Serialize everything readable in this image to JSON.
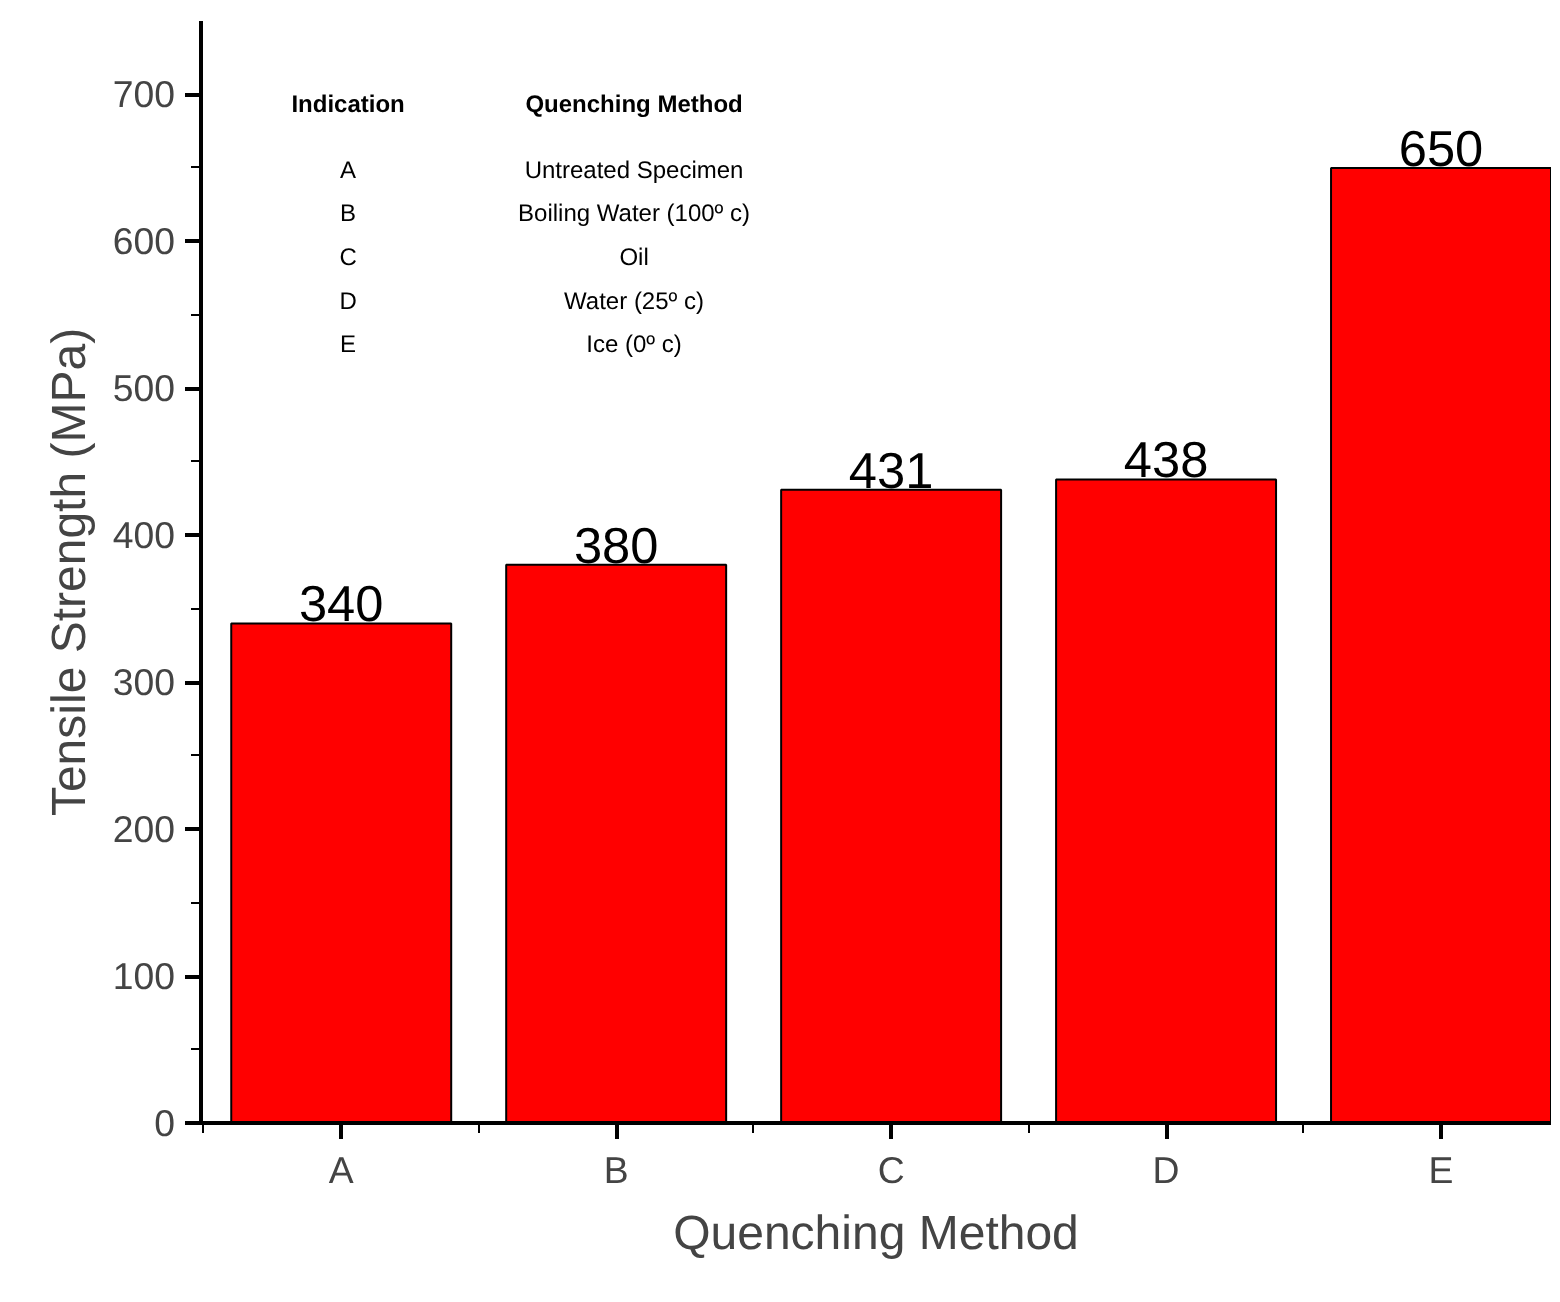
{
  "chart_data": {
    "type": "bar",
    "xlabel": "Quenching Method",
    "ylabel": "Tensile Strength (MPa)",
    "categories": [
      "A",
      "B",
      "C",
      "D",
      "E"
    ],
    "values": [
      340,
      380,
      431,
      438,
      650
    ],
    "color": "#ff0000",
    "data_labels": true,
    "ylim": [
      0,
      750
    ],
    "yticks": [
      0,
      {
        "value": 50,
        "label": null
      },
      100,
      {
        "value": 150,
        "label": null
      },
      200,
      {
        "value": 250,
        "label": null
      },
      300,
      {
        "value": 350,
        "label": null
      },
      400,
      {
        "value": 450,
        "label": null
      },
      500,
      {
        "value": 550,
        "label": null
      },
      600,
      {
        "value": 650,
        "label": null
      },
      700
    ],
    "grid": false,
    "annotations": [
      "Indication",
      "Quenching Method",
      "A",
      "Untreated Specimen",
      "B",
      "Boiling Water (100º c)",
      "C",
      "Oil",
      "D",
      "Water (25º c)",
      "E",
      "Ice (0º c)"
    ]
  }
}
